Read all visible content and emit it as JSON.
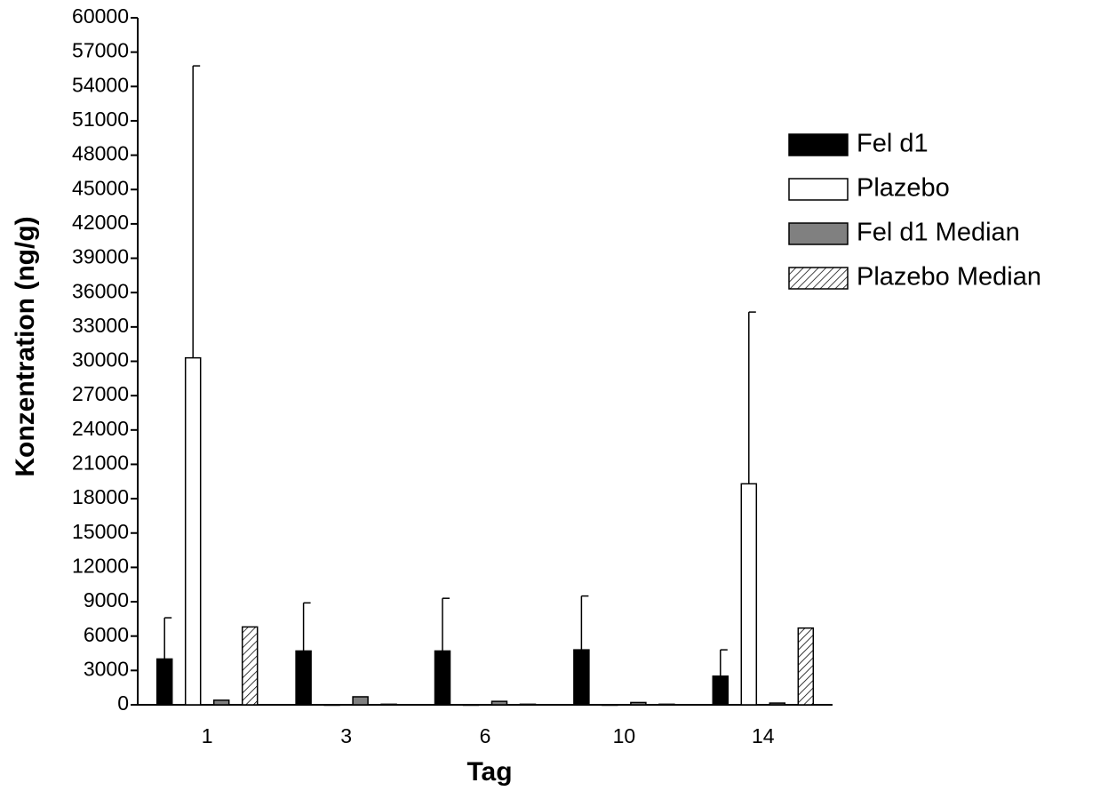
{
  "chart_data": {
    "type": "bar",
    "x_label": "Tag",
    "y_label": "Konzentration (ng/g)",
    "categories": [
      "1",
      "3",
      "6",
      "10",
      "14"
    ],
    "series": [
      {
        "name": "Fel d1",
        "color": "#000000",
        "values": [
          4000,
          4700,
          4700,
          4800,
          2500
        ],
        "errors": [
          3600,
          4200,
          4600,
          4700,
          2300
        ]
      },
      {
        "name": "Plazebo",
        "color": "#ffffff",
        "values": [
          30300,
          0,
          0,
          0,
          19300
        ],
        "errors": [
          25500,
          null,
          null,
          null,
          15000
        ]
      },
      {
        "name": "Fel d1 Median",
        "color": "#808080",
        "values": [
          400,
          700,
          300,
          200,
          150
        ],
        "errors": [
          null,
          null,
          null,
          null,
          null
        ]
      },
      {
        "name": "Plazebo Median",
        "color": "#ffffff",
        "pattern": "hatch",
        "values": [
          6800,
          50,
          50,
          50,
          6700
        ],
        "errors": [
          null,
          null,
          null,
          null,
          null
        ]
      }
    ],
    "ylim": [
      0,
      60000
    ],
    "yticks": [
      0,
      3000,
      6000,
      9000,
      12000,
      15000,
      18000,
      21000,
      24000,
      27000,
      30000,
      33000,
      36000,
      39000,
      42000,
      45000,
      48000,
      51000,
      54000,
      57000,
      60000
    ],
    "legend": "right"
  }
}
